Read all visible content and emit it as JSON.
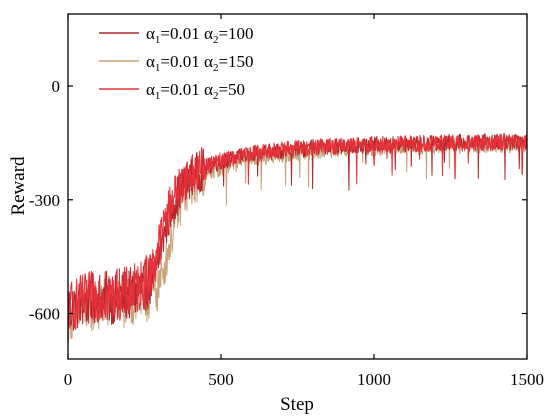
{
  "chart_data": {
    "type": "line",
    "xlabel": "Step",
    "ylabel": "Reward",
    "xlim": [
      0,
      1500
    ],
    "ylim": [
      -720,
      190
    ],
    "x_ticks": [
      0,
      500,
      1000,
      1500
    ],
    "x_tick_labels": [
      "0",
      "500",
      "1000",
      "1500"
    ],
    "y_ticks": [
      0,
      -300,
      -600
    ],
    "y_tick_labels": [
      "0",
      "-300",
      "-600"
    ],
    "legend_position": "top-left",
    "series": [
      {
        "name": "α1=0.01 α2=100",
        "legend": {
          "a1_sym": "α",
          "a1_sub": "1",
          "a1_val": "=0.01 ",
          "a2_sym": "α",
          "a2_sub": "2",
          "a2_val": "=100"
        },
        "color": "#b3282d",
        "x": [
          0,
          50,
          100,
          150,
          200,
          250,
          280,
          300,
          320,
          340,
          360,
          380,
          400,
          450,
          500,
          600,
          700,
          800,
          900,
          1000,
          1100,
          1200,
          1300,
          1400,
          1500
        ],
        "values": [
          -590,
          -570,
          -555,
          -560,
          -550,
          -530,
          -500,
          -440,
          -370,
          -320,
          -285,
          -260,
          -240,
          -215,
          -200,
          -180,
          -170,
          -163,
          -158,
          -155,
          -152,
          -150,
          -148,
          -147,
          -146
        ]
      },
      {
        "name": "α1=0.01 α2=150",
        "legend": {
          "a1_sym": "α",
          "a1_sub": "1",
          "a1_val": "=0.01 ",
          "a2_sym": "α",
          "a2_sub": "2",
          "a2_val": "=150"
        },
        "color": "#c9a27a",
        "x": [
          0,
          50,
          100,
          150,
          200,
          250,
          280,
          300,
          320,
          340,
          360,
          380,
          400,
          450,
          500,
          600,
          700,
          800,
          900,
          1000,
          1100,
          1200,
          1300,
          1400,
          1500
        ],
        "values": [
          -605,
          -590,
          -575,
          -575,
          -570,
          -560,
          -545,
          -520,
          -460,
          -390,
          -330,
          -290,
          -265,
          -235,
          -215,
          -192,
          -180,
          -172,
          -166,
          -162,
          -160,
          -158,
          -156,
          -155,
          -154
        ]
      },
      {
        "name": "α1=0.01 α2=50",
        "legend": {
          "a1_sym": "α",
          "a1_sub": "1",
          "a1_val": "=0.01 ",
          "a2_sym": "α",
          "a2_sub": "2",
          "a2_val": "=50"
        },
        "color": "#e8303a",
        "x": [
          0,
          50,
          100,
          150,
          200,
          250,
          280,
          300,
          320,
          340,
          360,
          380,
          400,
          450,
          500,
          600,
          700,
          800,
          900,
          1000,
          1100,
          1200,
          1300,
          1400,
          1500
        ],
        "values": [
          -585,
          -565,
          -550,
          -550,
          -545,
          -520,
          -480,
          -410,
          -345,
          -300,
          -270,
          -250,
          -232,
          -210,
          -196,
          -178,
          -168,
          -162,
          -158,
          -155,
          -153,
          -151,
          -150,
          -149,
          -148
        ]
      }
    ]
  }
}
